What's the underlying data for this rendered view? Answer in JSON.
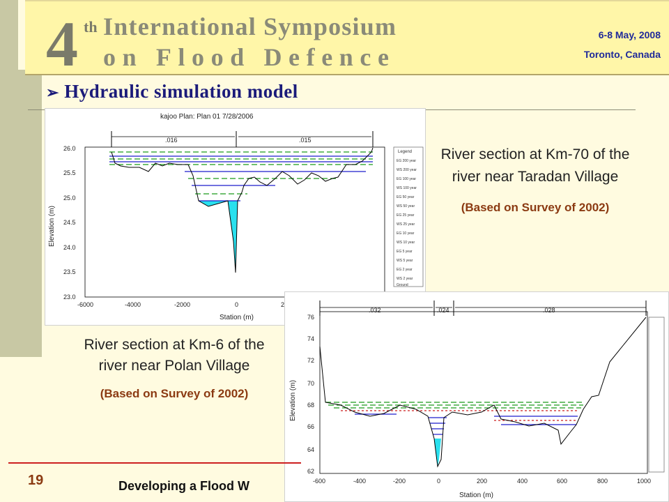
{
  "banner": {
    "title_number": "4",
    "title_suffix": "th",
    "title_line1": "International Symposium",
    "title_line2": "on Flood Defence",
    "date": "6-8 May, 2008",
    "location": "Toronto, Canada"
  },
  "slide": {
    "title": "Hydraulic simulation model",
    "title_bullet": "➢"
  },
  "captions": {
    "right_top": {
      "text": "River section at Km-70 of the river near Taradan Village",
      "sub": "(Based on Survey of 2002)"
    },
    "left_bottom": {
      "text": "River section at Km-6 of the river near Polan Village",
      "sub": "(Based on Survey of 2002)"
    }
  },
  "chart1": {
    "header": "kajoo     Plan: Plan 01     7/28/2006",
    "n_values": [
      ".016",
      ".015"
    ],
    "ylabel": "Elevation (m)",
    "xlabel": "Station (m)",
    "yticks": [
      "26.0",
      "25.5",
      "25.0",
      "24.5",
      "24.0",
      "23.5",
      "23.0"
    ],
    "xticks": [
      "-6000",
      "-4000",
      "-2000",
      "0",
      "2"
    ],
    "legend_title": "Legend",
    "legend_items": [
      "EG 200 year",
      "WS 200 year",
      "EG 100 year",
      "WS 100 year",
      "EG 50 year",
      "WS 50 year",
      "EG 25 year",
      "WS 25 year",
      "EG 10 year",
      "WS 10 year",
      "EG 5 year",
      "WS 5 year",
      "EG 2 year",
      "WS 2 year",
      "Ground"
    ]
  },
  "chart2": {
    "n_values": [
      ".032",
      ".024",
      ".028"
    ],
    "ylabel": "Elevation (m)",
    "xlabel": "Station (m)",
    "yticks": [
      "76",
      "74",
      "72",
      "70",
      "68",
      "66",
      "64",
      "62"
    ],
    "xticks": [
      "-600",
      "-400",
      "-200",
      "0",
      "200",
      "400",
      "600",
      "800",
      "1000"
    ]
  },
  "footer": {
    "page": "19",
    "text": "Developing a Flood W"
  },
  "colors": {
    "title_blue": "#1b1b7a",
    "date_blue": "#1f2a9a",
    "sub_brown": "#8b3a12",
    "water": "#29e0ee",
    "footer_red": "#cc1f1f"
  }
}
